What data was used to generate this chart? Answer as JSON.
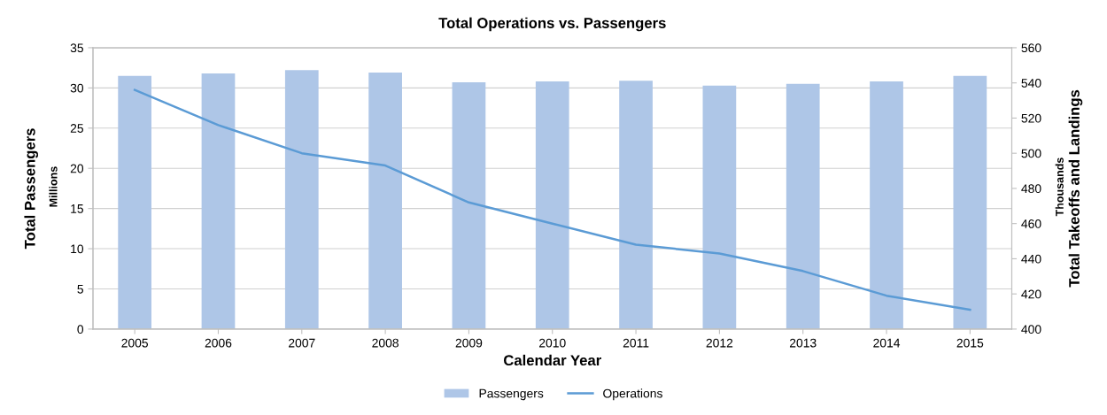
{
  "chart_data": {
    "type": "bar",
    "title": "Total Operations vs. Passengers",
    "xlabel": "Calendar Year",
    "ylabel": "Total Passengers",
    "y2label": "Total Takeoffs and Landings",
    "annotations": [
      "Millions",
      "Thousands"
    ],
    "categories": [
      "2005",
      "2006",
      "2007",
      "2008",
      "2009",
      "2010",
      "2011",
      "2012",
      "2013",
      "2014",
      "2015"
    ],
    "series": [
      {
        "name": "Passengers",
        "color": "#aec6e7",
        "values": [
          31.5,
          31.8,
          32.2,
          31.9,
          30.7,
          30.8,
          30.9,
          30.3,
          30.5,
          30.8,
          31.5
        ]
      },
      {
        "name": "Operations",
        "type": "line",
        "axis": "y2",
        "color": "#5b9bd5",
        "values": [
          536,
          516,
          500,
          493,
          472,
          460,
          448,
          443,
          433,
          419,
          411
        ]
      }
    ],
    "ylim": [
      0,
      35
    ],
    "yticks": [
      0,
      5,
      10,
      15,
      20,
      25,
      30,
      35
    ],
    "y2lim": [
      400,
      560
    ],
    "y2ticks": [
      400,
      420,
      440,
      460,
      480,
      500,
      520,
      540,
      560
    ],
    "grid": "y",
    "legend": "bottom",
    "marker": "none",
    "line_style": "solid"
  }
}
